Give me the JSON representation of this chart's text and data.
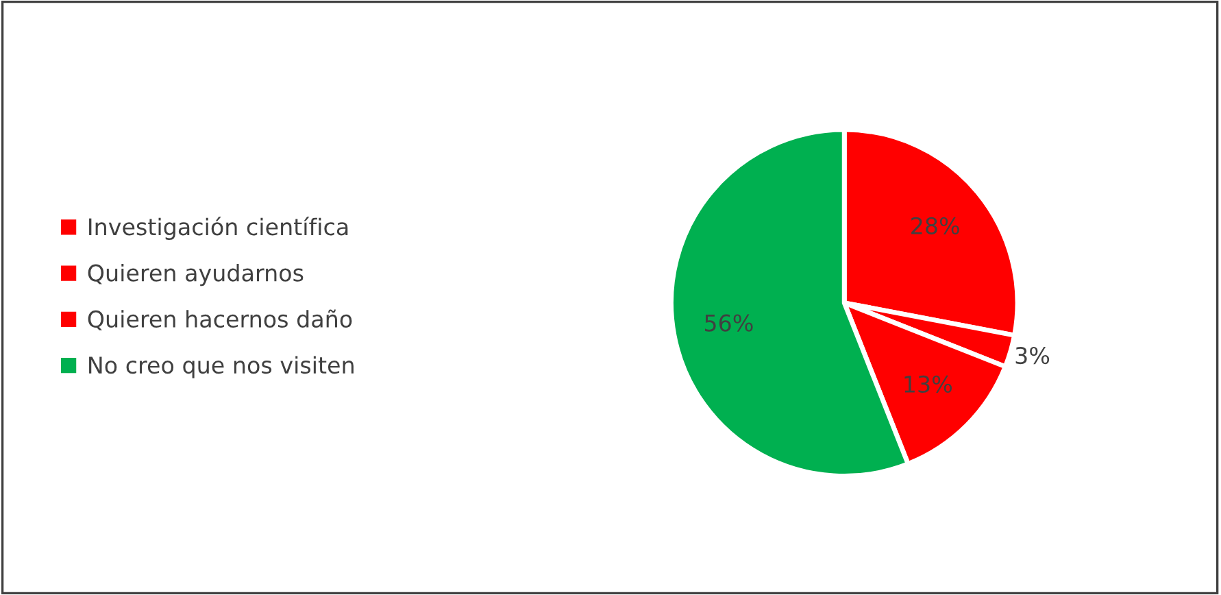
{
  "chart_data": {
    "type": "pie",
    "categories": [
      "Investigación científica",
      "Quieren ayudarnos",
      "Quieren hacernos daño",
      "No creo que nos visiten"
    ],
    "values": [
      28,
      3,
      13,
      56
    ],
    "value_labels": [
      "28%",
      "3%",
      "13%",
      "56%"
    ],
    "colors": [
      "#ff0000",
      "#ff0000",
      "#ff0000",
      "#00b050"
    ],
    "legend": "left"
  }
}
